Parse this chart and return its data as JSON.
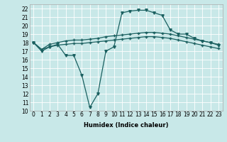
{
  "title": "",
  "xlabel": "Humidex (Indice chaleur)",
  "xlim": [
    -0.5,
    23.5
  ],
  "ylim": [
    10,
    22.5
  ],
  "xticks": [
    0,
    1,
    2,
    3,
    4,
    5,
    6,
    7,
    8,
    9,
    10,
    11,
    12,
    13,
    14,
    15,
    16,
    17,
    18,
    19,
    20,
    21,
    22,
    23
  ],
  "yticks": [
    10,
    11,
    12,
    13,
    14,
    15,
    16,
    17,
    18,
    19,
    20,
    21,
    22
  ],
  "bg_color": "#c8e8e8",
  "line_color": "#1a6060",
  "grid_color": "#ffffff",
  "line1_x": [
    0,
    1,
    2,
    3,
    4,
    5,
    6,
    7,
    8,
    9,
    10,
    11,
    12,
    13,
    14,
    15,
    16,
    17,
    18,
    19,
    20,
    21,
    22,
    23
  ],
  "line1_y": [
    18.0,
    17.0,
    17.5,
    17.8,
    16.5,
    16.5,
    14.2,
    10.4,
    12.0,
    17.0,
    17.5,
    21.5,
    21.7,
    21.8,
    21.8,
    21.5,
    21.2,
    19.5,
    19.0,
    19.0,
    18.5,
    18.2,
    18.0,
    17.7
  ],
  "line2_x": [
    0,
    1,
    2,
    3,
    4,
    5,
    6,
    7,
    8,
    9,
    10,
    11,
    12,
    13,
    14,
    15,
    16,
    17,
    18,
    19,
    20,
    21,
    22,
    23
  ],
  "line2_y": [
    18.0,
    17.2,
    17.8,
    18.0,
    18.2,
    18.3,
    18.3,
    18.4,
    18.5,
    18.7,
    18.8,
    18.9,
    19.0,
    19.1,
    19.2,
    19.2,
    19.1,
    19.0,
    18.8,
    18.6,
    18.4,
    18.2,
    18.0,
    17.8
  ],
  "line3_x": [
    0,
    1,
    2,
    3,
    4,
    5,
    6,
    7,
    8,
    9,
    10,
    11,
    12,
    13,
    14,
    15,
    16,
    17,
    18,
    19,
    20,
    21,
    22,
    23
  ],
  "line3_y": [
    18.0,
    17.2,
    17.5,
    17.7,
    17.8,
    17.9,
    17.9,
    18.0,
    18.1,
    18.2,
    18.3,
    18.4,
    18.5,
    18.6,
    18.7,
    18.7,
    18.6,
    18.5,
    18.3,
    18.1,
    17.9,
    17.7,
    17.5,
    17.3
  ],
  "tick_fontsize": 5.5,
  "xlabel_fontsize": 6.0
}
